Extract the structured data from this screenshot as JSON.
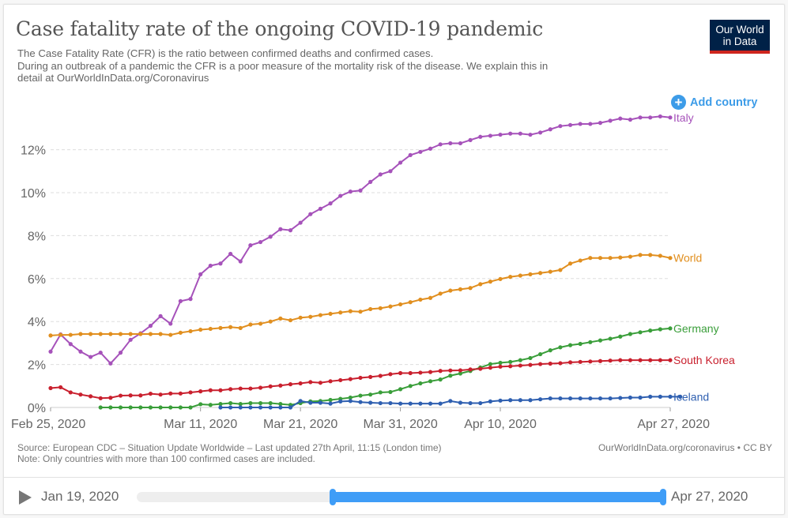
{
  "header": {
    "title": "Case fatality rate of the ongoing COVID-19 pandemic",
    "subtitle_lines": [
      "The Case Fatality Rate (CFR) is the ratio between confirmed deaths and confirmed cases.",
      "During an outbreak of a pandemic the CFR is a poor measure of the mortality risk of the disease. We explain this in",
      "detail at OurWorldInData.org/Coronavirus"
    ],
    "logo_line1": "Our World",
    "logo_line2": "in Data"
  },
  "controls": {
    "add_country_label": "Add country",
    "add_country_icon": "plus-circle-icon"
  },
  "footer": {
    "source": "Source: European CDC – Situation Update Worldwide – Last updated 27th April, 11:15 (London time)",
    "note": "Note: Only countries with more than 100 confirmed cases are included.",
    "attribution": "OurWorldInData.org/coronavirus • CC BY"
  },
  "timeline": {
    "play_icon": "play-icon",
    "start_label": "Jan 19, 2020",
    "end_label": "Apr 27, 2020",
    "range_start": "Feb 25, 2020",
    "range_end": "Apr 27, 2020",
    "selected_start_fraction": 0.37,
    "selected_end_fraction": 1.0
  },
  "chart_data": {
    "type": "line",
    "title": "Case fatality rate of the ongoing COVID-19 pandemic",
    "xlabel": "",
    "ylabel": "",
    "x_start": "Feb 25, 2020",
    "x_end": "Apr 27, 2020",
    "x_step": "1 day",
    "xticks": [
      {
        "label": "Feb 25, 2020",
        "day": 0
      },
      {
        "label": "Mar 11, 2020",
        "day": 15
      },
      {
        "label": "Mar 21, 2020",
        "day": 25
      },
      {
        "label": "Mar 31, 2020",
        "day": 35
      },
      {
        "label": "Apr 10, 2020",
        "day": 45
      },
      {
        "label": "Apr 27, 2020",
        "day": 62
      }
    ],
    "yticks": [
      "0%",
      "2%",
      "4%",
      "6%",
      "8%",
      "10%",
      "12%"
    ],
    "ytick_values": [
      0,
      2,
      4,
      6,
      8,
      10,
      12
    ],
    "ylim": [
      0,
      13.5
    ],
    "grid": true,
    "legend": "right-end labels",
    "series": [
      {
        "name": "Italy",
        "color": "#a652ba",
        "start_day": 0,
        "values": [
          2.6,
          3.4,
          2.95,
          2.6,
          2.35,
          2.55,
          2.05,
          2.55,
          3.15,
          3.45,
          3.8,
          4.25,
          3.9,
          4.95,
          5.05,
          6.2,
          6.6,
          6.7,
          7.15,
          6.8,
          7.55,
          7.7,
          7.95,
          8.3,
          8.25,
          8.6,
          9.0,
          9.25,
          9.5,
          9.85,
          10.05,
          10.1,
          10.5,
          10.85,
          11.0,
          11.4,
          11.75,
          11.9,
          12.05,
          12.25,
          12.3,
          12.3,
          12.45,
          12.6,
          12.65,
          12.7,
          12.75,
          12.75,
          12.7,
          12.8,
          12.95,
          13.1,
          13.15,
          13.2,
          13.2,
          13.25,
          13.35,
          13.45,
          13.4,
          13.5,
          13.5,
          13.55,
          13.5
        ]
      },
      {
        "name": "World",
        "color": "#e18f1f",
        "start_day": 0,
        "values": [
          3.35,
          3.38,
          3.38,
          3.42,
          3.42,
          3.42,
          3.42,
          3.42,
          3.42,
          3.42,
          3.42,
          3.42,
          3.38,
          3.48,
          3.55,
          3.62,
          3.66,
          3.7,
          3.74,
          3.7,
          3.86,
          3.9,
          4.0,
          4.14,
          4.06,
          4.18,
          4.22,
          4.3,
          4.36,
          4.42,
          4.48,
          4.46,
          4.58,
          4.62,
          4.7,
          4.8,
          4.9,
          5.02,
          5.1,
          5.3,
          5.44,
          5.5,
          5.56,
          5.74,
          5.86,
          5.98,
          6.08,
          6.14,
          6.2,
          6.26,
          6.32,
          6.4,
          6.7,
          6.84,
          6.96,
          6.96,
          6.96,
          6.98,
          7.02,
          7.1,
          7.1,
          7.06,
          6.96
        ]
      },
      {
        "name": "Germany",
        "color": "#3a9e3a",
        "start_day": 5,
        "values": [
          0.0,
          0.0,
          0.0,
          0.0,
          0.0,
          0.0,
          0.0,
          0.0,
          0.0,
          0.0,
          0.15,
          0.12,
          0.16,
          0.2,
          0.16,
          0.2,
          0.2,
          0.2,
          0.16,
          0.12,
          0.2,
          0.28,
          0.3,
          0.35,
          0.4,
          0.46,
          0.55,
          0.6,
          0.7,
          0.72,
          0.85,
          1.0,
          1.12,
          1.22,
          1.3,
          1.48,
          1.58,
          1.7,
          1.86,
          2.02,
          2.08,
          2.12,
          2.2,
          2.3,
          2.48,
          2.66,
          2.8,
          2.9,
          2.96,
          3.04,
          3.12,
          3.2,
          3.3,
          3.42,
          3.5,
          3.58,
          3.64,
          3.68
        ]
      },
      {
        "name": "South Korea",
        "color": "#c9202e",
        "start_day": 0,
        "values": [
          0.9,
          0.94,
          0.7,
          0.6,
          0.52,
          0.43,
          0.45,
          0.55,
          0.56,
          0.56,
          0.64,
          0.6,
          0.65,
          0.65,
          0.7,
          0.75,
          0.8,
          0.8,
          0.85,
          0.88,
          0.88,
          0.92,
          0.98,
          1.02,
          1.08,
          1.12,
          1.18,
          1.15,
          1.22,
          1.27,
          1.32,
          1.38,
          1.42,
          1.47,
          1.55,
          1.6,
          1.6,
          1.62,
          1.65,
          1.7,
          1.72,
          1.73,
          1.77,
          1.8,
          1.85,
          1.9,
          1.92,
          1.95,
          1.98,
          2.02,
          2.04,
          2.06,
          2.1,
          2.12,
          2.14,
          2.16,
          2.18,
          2.2,
          2.2,
          2.2,
          2.2,
          2.2,
          2.2
        ]
      },
      {
        "name": "Iceland",
        "color": "#2e5fb0",
        "start_day": 17,
        "values": [
          0.0,
          0.0,
          0.0,
          0.0,
          0.0,
          0.0,
          0.0,
          0.0,
          0.3,
          0.22,
          0.22,
          0.18,
          0.28,
          0.3,
          0.25,
          0.22,
          0.2,
          0.2,
          0.18,
          0.18,
          0.18,
          0.18,
          0.18,
          0.3,
          0.22,
          0.2,
          0.2,
          0.28,
          0.32,
          0.34,
          0.34,
          0.34,
          0.38,
          0.42,
          0.42,
          0.42,
          0.42,
          0.42,
          0.42,
          0.42,
          0.44,
          0.46,
          0.46,
          0.5,
          0.5,
          0.5,
          0.5
        ]
      }
    ]
  }
}
